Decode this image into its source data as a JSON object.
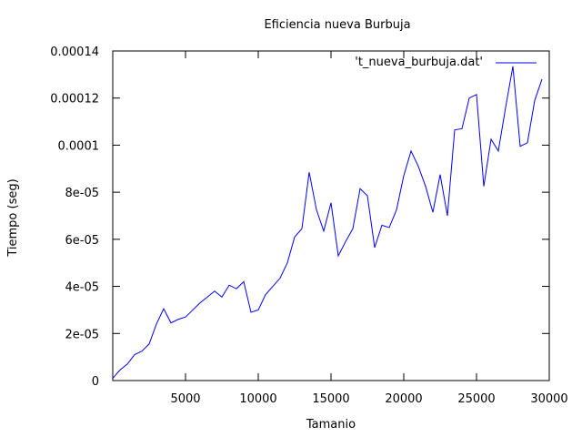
{
  "chart_data": {
    "type": "line",
    "title": "Eficiencia nueva Burbuja",
    "xlabel": "Tamanio",
    "ylabel": "Tiempo (seg)",
    "xlim": [
      0,
      30000
    ],
    "ylim": [
      0,
      0.00014
    ],
    "x_ticks": [
      5000,
      10000,
      15000,
      20000,
      25000,
      30000
    ],
    "x_tick_labels": [
      "5000",
      "10000",
      "15000",
      "20000",
      "25000",
      "30000"
    ],
    "y_ticks": [
      0,
      2e-05,
      4e-05,
      6e-05,
      8e-05,
      0.0001,
      0.00012,
      0.00014
    ],
    "y_tick_labels": [
      "0",
      "2e-05",
      "4e-05",
      "6e-05",
      "8e-05",
      "0.0001",
      "0.00012",
      "0.00014"
    ],
    "grid": false,
    "legend_position": "top-right",
    "series": [
      {
        "name": "'t_nueva_burbuja.dat'",
        "color": "#0000ff",
        "x": [
          0,
          500,
          1000,
          1500,
          2000,
          2500,
          3000,
          3500,
          4000,
          4500,
          5000,
          5500,
          6000,
          6500,
          7000,
          7500,
          8000,
          8500,
          9000,
          9500,
          10000,
          10500,
          11000,
          11500,
          12000,
          12500,
          13000,
          13500,
          14000,
          14500,
          15000,
          15500,
          16000,
          16500,
          17000,
          17500,
          18000,
          18500,
          19000,
          19500,
          20000,
          20500,
          21000,
          21500,
          22000,
          22500,
          23000,
          23500,
          24000,
          24500,
          25000,
          25500,
          26000,
          26500,
          27000,
          27500,
          28000,
          28500,
          29000,
          29500
        ],
        "y": [
          1e-06,
          4.5e-06,
          7e-06,
          1.1e-05,
          1.25e-05,
          1.55e-05,
          2.4e-05,
          3.05e-05,
          2.45e-05,
          2.6e-05,
          2.7e-05,
          3e-05,
          3.3e-05,
          3.55e-05,
          3.8e-05,
          3.55e-05,
          4.05e-05,
          3.9e-05,
          4.2e-05,
          2.9e-05,
          3e-05,
          3.65e-05,
          4e-05,
          4.35e-05,
          5e-05,
          6.1e-05,
          6.45e-05,
          8.85e-05,
          7.25e-05,
          6.35e-05,
          7.55e-05,
          5.3e-05,
          5.9e-05,
          6.45e-05,
          8.15e-05,
          7.85e-05,
          5.65e-05,
          6.6e-05,
          6.5e-05,
          7.25e-05,
          8.7e-05,
          9.75e-05,
          9.1e-05,
          8.25e-05,
          7.15e-05,
          8.75e-05,
          7e-05,
          0.0001065,
          0.000107,
          0.00012,
          0.0001215,
          8.25e-05,
          0.0001025,
          9.75e-05,
          0.000116,
          0.0001335,
          9.95e-05,
          0.000101,
          0.000119,
          0.000128
        ]
      }
    ]
  }
}
